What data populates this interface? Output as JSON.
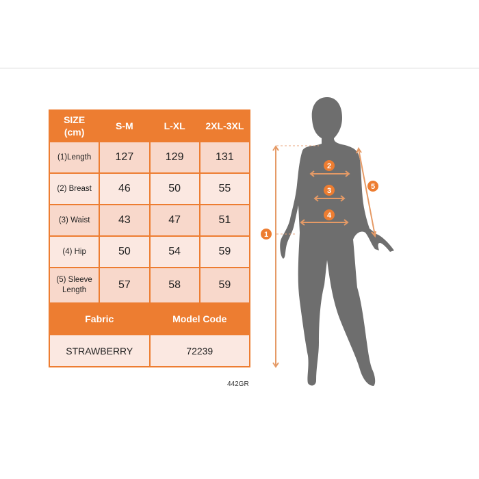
{
  "table": {
    "header": [
      "SIZE\n(cm)",
      "S-M",
      "L-XL",
      "2XL-3XL"
    ],
    "header_line1": "SIZE",
    "header_line2": "(cm)",
    "rows": [
      {
        "label": "(1)Length",
        "values": [
          "127",
          "129",
          "131"
        ]
      },
      {
        "label": "(2) Breast",
        "values": [
          "46",
          "50",
          "55"
        ]
      },
      {
        "label": "(3) Waist",
        "values": [
          "43",
          "47",
          "51"
        ]
      },
      {
        "label": "(4) Hip",
        "values": [
          "50",
          "54",
          "59"
        ]
      },
      {
        "label": "(5) Sleeve Length",
        "label_line1": "(5) Sleeve",
        "label_line2": "Length",
        "values": [
          "57",
          "58",
          "59"
        ]
      }
    ],
    "fabric_label": "Fabric",
    "model_code_label": "Model Code",
    "fabric_value": "STRAWBERRY",
    "model_code_value": "72239"
  },
  "product_code": "442GR",
  "figure": {
    "markers": [
      "1",
      "2",
      "3",
      "4",
      "5"
    ]
  },
  "colors": {
    "accent": "#ed7d31",
    "row_dark": "#f8d8cb",
    "row_light": "#fbe8e1",
    "silhouette": "#6e6e6e"
  }
}
